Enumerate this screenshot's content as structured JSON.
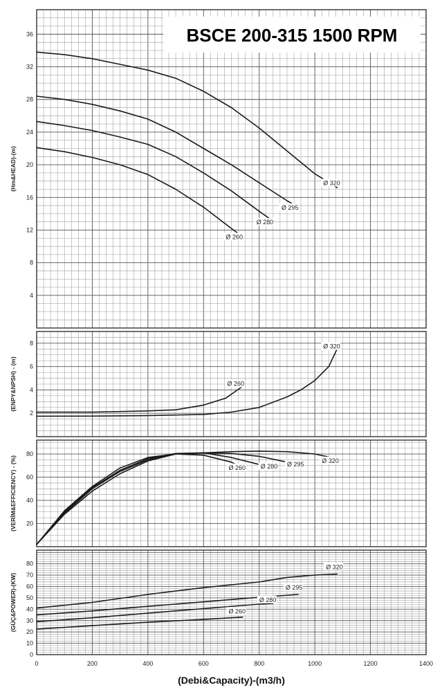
{
  "chart_data": {
    "type": "line",
    "title": "BSCE 200-315 1500 RPM",
    "xlabel": "(Debi&Capacity)-(m3/h)",
    "xlim": [
      0,
      1400
    ],
    "x_ticks": [
      "0",
      "200",
      "400",
      "600",
      "800",
      "1000",
      "1200",
      "1400"
    ],
    "grid": true,
    "panels": [
      {
        "id": "head",
        "ylabel": "(Hm&HEAD)-(m)",
        "ylim": [
          0,
          39
        ],
        "y_ticks": [
          "4",
          "8",
          "12",
          "16",
          "20",
          "24",
          "28",
          "32",
          "36"
        ],
        "series": [
          {
            "name": "Ø 320",
            "label_at": [
              1030,
              17.6
            ],
            "points": [
              [
                0,
                33.8
              ],
              [
                100,
                33.5
              ],
              [
                200,
                33.0
              ],
              [
                300,
                32.3
              ],
              [
                400,
                31.6
              ],
              [
                500,
                30.6
              ],
              [
                600,
                29.0
              ],
              [
                700,
                27.0
              ],
              [
                800,
                24.5
              ],
              [
                900,
                21.7
              ],
              [
                1000,
                18.9
              ],
              [
                1080,
                17.2
              ]
            ]
          },
          {
            "name": "Ø 295",
            "label_at": [
              880,
              14.6
            ],
            "points": [
              [
                0,
                28.4
              ],
              [
                100,
                28.0
              ],
              [
                200,
                27.4
              ],
              [
                300,
                26.6
              ],
              [
                400,
                25.6
              ],
              [
                500,
                24.0
              ],
              [
                600,
                22.0
              ],
              [
                700,
                20.0
              ],
              [
                800,
                17.8
              ],
              [
                900,
                15.6
              ],
              [
                940,
                14.8
              ]
            ]
          },
          {
            "name": "Ø 280",
            "label_at": [
              790,
              12.8
            ],
            "points": [
              [
                0,
                25.3
              ],
              [
                100,
                24.8
              ],
              [
                200,
                24.2
              ],
              [
                300,
                23.4
              ],
              [
                400,
                22.5
              ],
              [
                500,
                21.0
              ],
              [
                600,
                19.0
              ],
              [
                700,
                16.8
              ],
              [
                800,
                14.3
              ],
              [
                850,
                13.1
              ]
            ]
          },
          {
            "name": "Ø 260",
            "label_at": [
              680,
              11.0
            ],
            "points": [
              [
                0,
                22.1
              ],
              [
                100,
                21.6
              ],
              [
                200,
                20.9
              ],
              [
                300,
                20.0
              ],
              [
                400,
                18.8
              ],
              [
                500,
                17.0
              ],
              [
                600,
                14.8
              ],
              [
                700,
                12.2
              ],
              [
                740,
                11.2
              ]
            ]
          }
        ]
      },
      {
        "id": "npsh",
        "ylabel": "(ENPY&NPSH) - (m)",
        "ylim": [
          0,
          9
        ],
        "y_ticks": [
          "2",
          "4",
          "6",
          "8"
        ],
        "series": [
          {
            "name": "Ø 320",
            "label_at": [
              1030,
              7.6
            ],
            "points": [
              [
                0,
                1.75
              ],
              [
                200,
                1.76
              ],
              [
                400,
                1.8
              ],
              [
                600,
                1.9
              ],
              [
                700,
                2.1
              ],
              [
                800,
                2.5
              ],
              [
                900,
                3.4
              ],
              [
                950,
                4.0
              ],
              [
                1000,
                4.8
              ],
              [
                1050,
                6.0
              ],
              [
                1080,
                7.5
              ]
            ]
          },
          {
            "name": "Ø 260",
            "label_at": [
              685,
              4.4
            ],
            "points": [
              [
                0,
                2.1
              ],
              [
                200,
                2.1
              ],
              [
                400,
                2.2
              ],
              [
                500,
                2.3
              ],
              [
                600,
                2.7
              ],
              [
                680,
                3.3
              ],
              [
                740,
                4.3
              ]
            ]
          }
        ]
      },
      {
        "id": "efficiency",
        "ylabel": "(VERİM&EFFICIENCY) - (%)",
        "ylim": [
          0,
          92
        ],
        "y_ticks": [
          "20",
          "40",
          "60",
          "80"
        ],
        "series": [
          {
            "name": "Ø 320",
            "label_at": [
              1025,
              73
            ],
            "points": [
              [
                0,
                2
              ],
              [
                100,
                28
              ],
              [
                200,
                48
              ],
              [
                300,
                63
              ],
              [
                400,
                74
              ],
              [
                500,
                80
              ],
              [
                600,
                81
              ],
              [
                700,
                82
              ],
              [
                800,
                82.5
              ],
              [
                900,
                82
              ],
              [
                1000,
                80
              ],
              [
                1080,
                76
              ]
            ]
          },
          {
            "name": "Ø 295",
            "label_at": [
              900,
              70
            ],
            "points": [
              [
                0,
                2
              ],
              [
                100,
                29
              ],
              [
                200,
                50
              ],
              [
                300,
                65
              ],
              [
                400,
                75
              ],
              [
                500,
                80
              ],
              [
                600,
                81
              ],
              [
                700,
                80.5
              ],
              [
                800,
                78
              ],
              [
                900,
                73
              ],
              [
                940,
                71
              ]
            ]
          },
          {
            "name": "Ø 280",
            "label_at": [
              805,
              68
            ],
            "points": [
              [
                0,
                2
              ],
              [
                100,
                30
              ],
              [
                200,
                51
              ],
              [
                300,
                66
              ],
              [
                400,
                76
              ],
              [
                500,
                80.5
              ],
              [
                600,
                81
              ],
              [
                700,
                77
              ],
              [
                800,
                71
              ],
              [
                850,
                68
              ]
            ]
          },
          {
            "name": "Ø 260",
            "label_at": [
              690,
              67
            ],
            "points": [
              [
                0,
                2
              ],
              [
                100,
                31
              ],
              [
                200,
                52
              ],
              [
                300,
                68
              ],
              [
                400,
                77
              ],
              [
                500,
                80
              ],
              [
                600,
                79
              ],
              [
                700,
                73
              ],
              [
                740,
                68
              ]
            ]
          }
        ]
      },
      {
        "id": "power",
        "ylabel": "(GÜÇ&POWER)-(KW)",
        "ylim": [
          0,
          92
        ],
        "y_ticks": [
          "0",
          "10",
          "20",
          "30",
          "40",
          "50",
          "60",
          "70",
          "80"
        ],
        "series": [
          {
            "name": "Ø 320",
            "label_at": [
              1040,
              76
            ],
            "points": [
              [
                0,
                41
              ],
              [
                200,
                46
              ],
              [
                400,
                53
              ],
              [
                600,
                59
              ],
              [
                800,
                64
              ],
              [
                900,
                68
              ],
              [
                1000,
                70
              ],
              [
                1080,
                71
              ]
            ]
          },
          {
            "name": "Ø 295",
            "label_at": [
              895,
              58
            ],
            "points": [
              [
                0,
                35
              ],
              [
                200,
                38.5
              ],
              [
                400,
                42.5
              ],
              [
                600,
                46.5
              ],
              [
                800,
                50.5
              ],
              [
                940,
                53
              ]
            ]
          },
          {
            "name": "Ø 280",
            "label_at": [
              800,
              47
            ],
            "points": [
              [
                0,
                29
              ],
              [
                200,
                32.5
              ],
              [
                400,
                36.5
              ],
              [
                600,
                40.5
              ],
              [
                800,
                44.5
              ],
              [
                850,
                45
              ]
            ]
          },
          {
            "name": "Ø 260",
            "label_at": [
              690,
              37
            ],
            "points": [
              [
                0,
                22.5
              ],
              [
                200,
                25.5
              ],
              [
                400,
                28.5
              ],
              [
                600,
                31
              ],
              [
                740,
                33
              ]
            ]
          }
        ]
      }
    ]
  }
}
